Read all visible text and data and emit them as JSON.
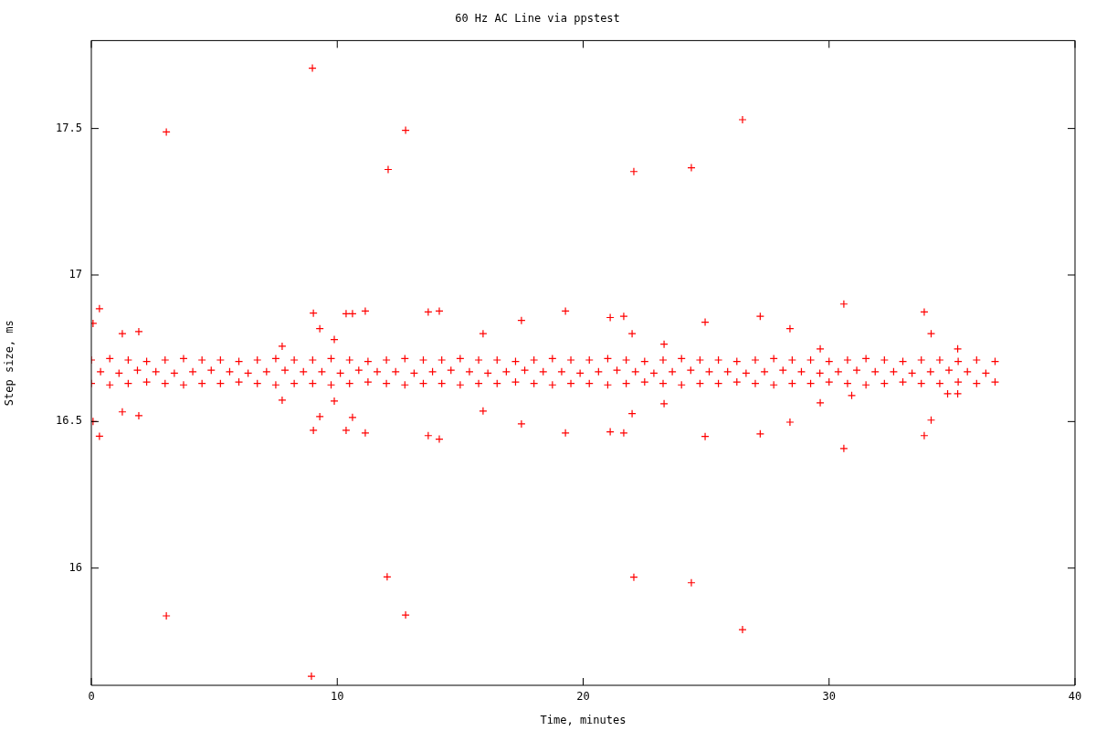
{
  "chart_data": {
    "type": "scatter",
    "title": "60 Hz AC Line via ppstest",
    "xlabel": "Time, minutes",
    "ylabel": "Step size, ms",
    "xlim": [
      0,
      40
    ],
    "xticks": [
      0,
      10,
      20,
      30,
      40
    ],
    "ylim": [
      15.6,
      17.8
    ],
    "yticks": [
      16,
      16.5,
      17,
      17.5
    ],
    "grid": false,
    "legend": false,
    "marker": "cross",
    "series": [
      {
        "color": "#ff0000",
        "x": [
          0,
          0.75,
          1.5,
          2.25,
          3,
          3.75,
          4.5,
          5.25,
          6,
          6.75,
          7.5,
          8.25,
          9,
          9.75,
          10.5,
          11.25,
          12,
          12.75,
          13.5,
          14.25,
          15,
          15.75,
          16.5,
          17.25,
          18,
          18.75,
          19.5,
          20.25,
          21,
          21.75,
          22.5,
          23.25,
          24,
          24.75,
          25.5,
          26.25,
          27,
          27.75,
          28.5,
          29.25,
          30,
          30.75,
          31.5,
          32.25,
          33,
          33.75,
          34.5,
          35.25,
          36,
          36.75,
          0,
          0.75,
          1.5,
          2.25,
          3,
          3.75,
          4.5,
          5.25,
          6,
          6.75,
          7.5,
          8.25,
          9,
          9.75,
          10.5,
          11.25,
          12,
          12.75,
          13.5,
          14.25,
          15,
          15.75,
          16.5,
          17.25,
          18,
          18.75,
          19.5,
          20.25,
          21,
          21.75,
          22.5,
          23.25,
          24,
          24.75,
          25.5,
          26.25,
          27,
          27.75,
          28.5,
          29.25,
          30,
          30.75,
          31.5,
          32.25,
          33,
          33.75,
          34.5,
          35.25,
          36,
          36.75,
          0.375,
          1.125,
          1.875,
          2.625,
          3.375,
          4.125,
          4.875,
          5.625,
          6.375,
          7.125,
          7.875,
          8.625,
          9.375,
          10.125,
          10.875,
          11.625,
          12.375,
          13.125,
          13.875,
          14.625,
          15.375,
          16.125,
          16.875,
          17.625,
          18.375,
          19.125,
          19.875,
          20.625,
          21.375,
          22.125,
          22.875,
          23.625,
          24.375,
          25.125,
          25.875,
          26.625,
          27.375,
          28.125,
          28.875,
          29.625,
          30.375,
          31.125,
          31.875,
          32.625,
          33.375,
          34.125,
          34.875,
          35.625,
          36.375,
          0.07,
          0.33,
          1.26,
          1.93,
          3.05,
          3.05,
          8.99,
          9.03,
          9.29,
          9.88,
          10.36,
          10.62,
          11.14,
          12.07,
          12.78,
          13.7,
          14.15,
          15.93,
          17.49,
          19.28,
          7.76,
          21.1,
          21.65,
          21.99,
          23.29,
          24.96,
          27.2,
          28.41,
          29.64,
          30.6,
          33.87,
          34.15,
          35.23,
          22.06,
          24.4,
          26.48,
          7.76,
          9.88,
          1.26,
          1.93,
          0.07,
          0.33,
          9.29,
          9.03,
          10.36,
          10.62,
          11.14,
          13.7,
          14.15,
          15.93,
          17.49,
          19.28,
          12.03,
          12.78,
          8.95,
          21.1,
          21.65,
          21.99,
          23.29,
          24.96,
          22.06,
          24.4,
          26.48,
          27.2,
          28.41,
          29.64,
          30.6,
          30.92,
          33.87,
          34.15,
          35.23,
          34.82
        ],
        "values": [
          16.71,
          16.715,
          16.71,
          16.705,
          16.71,
          16.715,
          16.71,
          16.71,
          16.705,
          16.71,
          16.715,
          16.71,
          16.71,
          16.715,
          16.71,
          16.705,
          16.71,
          16.715,
          16.71,
          16.71,
          16.715,
          16.71,
          16.71,
          16.705,
          16.71,
          16.715,
          16.71,
          16.71,
          16.715,
          16.71,
          16.705,
          16.71,
          16.715,
          16.71,
          16.71,
          16.705,
          16.71,
          16.715,
          16.71,
          16.71,
          16.705,
          16.71,
          16.715,
          16.71,
          16.705,
          16.71,
          16.71,
          16.705,
          16.71,
          16.705,
          16.63,
          16.625,
          16.63,
          16.635,
          16.63,
          16.625,
          16.63,
          16.63,
          16.635,
          16.63,
          16.625,
          16.63,
          16.63,
          16.625,
          16.63,
          16.635,
          16.63,
          16.625,
          16.63,
          16.63,
          16.625,
          16.63,
          16.63,
          16.635,
          16.63,
          16.625,
          16.63,
          16.63,
          16.625,
          16.63,
          16.635,
          16.63,
          16.625,
          16.63,
          16.63,
          16.635,
          16.63,
          16.625,
          16.63,
          16.63,
          16.635,
          16.63,
          16.625,
          16.63,
          16.635,
          16.63,
          16.63,
          16.635,
          16.63,
          16.635,
          16.67,
          16.665,
          16.675,
          16.67,
          16.665,
          16.67,
          16.675,
          16.67,
          16.665,
          16.67,
          16.675,
          16.67,
          16.67,
          16.665,
          16.675,
          16.67,
          16.67,
          16.665,
          16.67,
          16.675,
          16.67,
          16.665,
          16.67,
          16.675,
          16.67,
          16.67,
          16.665,
          16.67,
          16.675,
          16.67,
          16.665,
          16.67,
          16.675,
          16.67,
          16.67,
          16.665,
          16.67,
          16.675,
          16.67,
          16.665,
          16.67,
          16.675,
          16.67,
          16.67,
          16.665,
          16.67,
          16.675,
          16.67,
          16.665,
          16.835,
          16.885,
          16.8,
          16.807,
          17.488,
          15.837,
          17.706,
          16.87,
          16.817,
          16.78,
          16.868,
          16.868,
          16.877,
          17.36,
          17.494,
          16.874,
          16.877,
          16.8,
          16.845,
          16.877,
          16.757,
          16.855,
          16.859,
          16.8,
          16.764,
          16.839,
          16.859,
          16.817,
          16.748,
          16.901,
          16.874,
          16.8,
          16.748,
          17.353,
          17.366,
          17.53,
          16.573,
          16.57,
          16.533,
          16.52,
          16.5,
          16.45,
          16.517,
          16.47,
          16.47,
          16.514,
          16.461,
          16.452,
          16.44,
          16.536,
          16.492,
          16.461,
          15.97,
          15.84,
          15.631,
          16.465,
          16.461,
          16.527,
          16.561,
          16.449,
          15.969,
          15.95,
          15.79,
          16.458,
          16.498,
          16.564,
          16.408,
          16.589,
          16.452,
          16.505,
          16.595,
          16.595
        ]
      }
    ]
  }
}
